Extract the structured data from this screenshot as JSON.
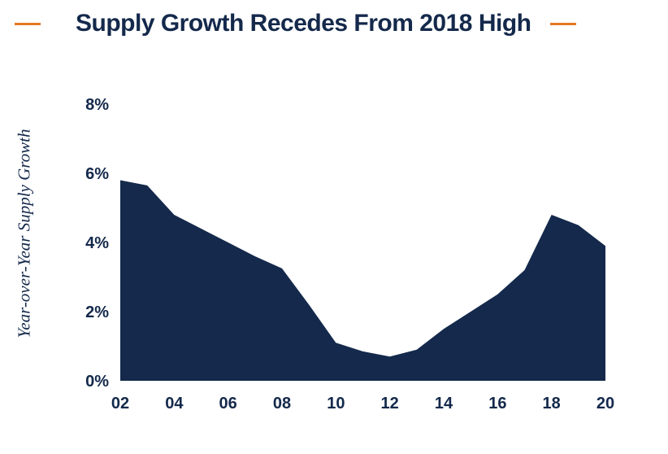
{
  "header": {
    "title": "Supply Growth Recedes From 2018 High"
  },
  "chart_data": {
    "type": "area",
    "title": "Supply Growth Recedes From 2018 High",
    "xlabel": "",
    "ylabel": "Year-over-Year Supply Growth",
    "x": [
      2002,
      2003,
      2004,
      2005,
      2006,
      2007,
      2008,
      2009,
      2010,
      2011,
      2012,
      2013,
      2014,
      2015,
      2016,
      2017,
      2018,
      2019,
      2020
    ],
    "values": [
      5.8,
      5.65,
      4.8,
      4.4,
      4.0,
      3.6,
      3.25,
      2.2,
      1.1,
      0.85,
      0.7,
      0.9,
      1.5,
      2.0,
      2.5,
      3.2,
      4.8,
      4.5,
      3.9
    ],
    "ylim": [
      0,
      8
    ],
    "xlim": [
      2002,
      2020
    ],
    "y_ticks": [
      {
        "value": 0,
        "label": "0%"
      },
      {
        "value": 2,
        "label": "2%"
      },
      {
        "value": 4,
        "label": "4%"
      },
      {
        "value": 6,
        "label": "6%"
      },
      {
        "value": 8,
        "label": "8%"
      }
    ],
    "x_ticks": [
      {
        "x": 2002,
        "label": "02"
      },
      {
        "x": 2004,
        "label": "04"
      },
      {
        "x": 2006,
        "label": "06"
      },
      {
        "x": 2008,
        "label": "08"
      },
      {
        "x": 2010,
        "label": "10"
      },
      {
        "x": 2012,
        "label": "12"
      },
      {
        "x": 2014,
        "label": "14"
      },
      {
        "x": 2016,
        "label": "16"
      },
      {
        "x": 2018,
        "label": "18"
      },
      {
        "x": 2020,
        "label": "20"
      }
    ],
    "grid": false,
    "legend": false,
    "colors": {
      "area_fill": "#14294B",
      "title_text": "#14294B",
      "tick_text": "#14294B",
      "accent_dash": "#E87722",
      "background": "#FFFFFF"
    }
  }
}
